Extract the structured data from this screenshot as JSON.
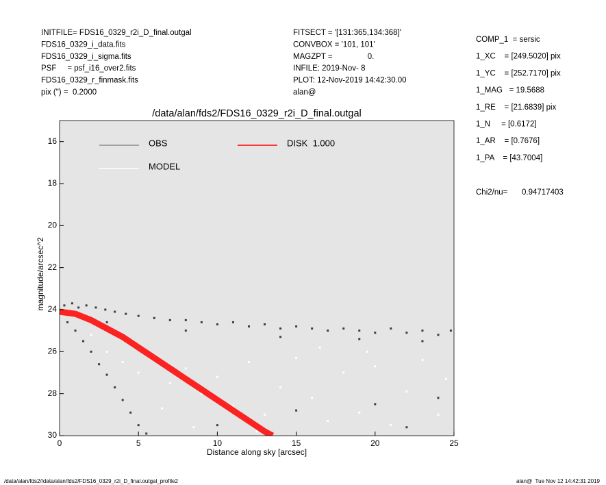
{
  "header": {
    "left": [
      "INITFILE= FDS16_0329_r2i_D_final.outgal",
      "FDS16_0329_i_data.fits",
      "FDS16_0329_i_sigma.fits",
      "PSF     = psf_i16_over2.fits",
      "FDS16_0329_r_finmask.fits",
      "pix (\") =  0.2000"
    ],
    "middle": [
      "FITSECT = '[131:365,134:368]'",
      "CONVBOX = '101, 101'",
      "MAGZPT =                0.",
      "INFILE: 2019-Nov- 8",
      "PLOT: 12-Nov-2019 14:42:30.00",
      "alan@"
    ],
    "right": [
      "COMP_1  = sersic",
      "1_XC    = [249.5020] pix",
      "1_YC    = [252.7170] pix",
      "1_MAG   = 19.5688",
      "1_RE    = [21.6839] pix",
      "1_N     = [0.6172]",
      "1_AR    = [0.7676]",
      "1_PA    = [43.7004]"
    ],
    "chi_label": "Chi2/nu=",
    "chi_value": "0.94717403"
  },
  "chart_data": {
    "type": "scatter",
    "title": "/data/alan/fds2/FDS16_0329_r2i_D_final.outgal",
    "x_label": "Distance along sky [arcsec]",
    "y_label": "magnitude/arcsec^2",
    "xlim": [
      0,
      25
    ],
    "ylim": [
      30,
      15
    ],
    "xticks": [
      0,
      5,
      10,
      15,
      20,
      25
    ],
    "yticks": [
      16,
      18,
      20,
      22,
      24,
      26,
      28,
      30
    ],
    "background": "#e5e5e5",
    "series": [
      {
        "name": "OBS",
        "color": "#3c3c3c",
        "legend_color": "#8c8c8c",
        "marker": "point",
        "x": [
          0.3,
          0.8,
          1.2,
          1.7,
          2.3,
          2.9,
          3.5,
          4.2,
          5.0,
          6.0,
          7.0,
          8.0,
          9.0,
          10.0,
          11.0,
          12.0,
          13.0,
          14.0,
          15.0,
          16.0,
          17.0,
          18.0,
          19.0,
          20.0,
          21.0,
          22.0,
          23.0,
          24.0,
          24.8,
          3.0,
          8.0,
          14.0,
          19.0,
          23.0,
          0.5,
          1.0,
          1.5,
          2.0,
          2.5,
          3.0,
          3.5,
          4.0,
          4.5,
          5.0,
          5.5,
          10.0,
          15.0,
          20.0,
          24.0,
          22.0
        ],
        "values": [
          23.8,
          23.7,
          23.9,
          23.8,
          23.9,
          24.0,
          24.1,
          24.2,
          24.3,
          24.4,
          24.5,
          24.5,
          24.6,
          24.7,
          24.6,
          24.8,
          24.7,
          24.9,
          24.8,
          24.9,
          25.0,
          24.9,
          25.0,
          25.1,
          24.9,
          25.1,
          25.0,
          25.2,
          25.0,
          24.6,
          25.0,
          25.3,
          25.4,
          25.5,
          24.6,
          25.0,
          25.5,
          26.0,
          26.6,
          27.1,
          27.7,
          28.3,
          28.9,
          29.5,
          29.9,
          29.5,
          28.8,
          28.5,
          28.2,
          29.6
        ]
      },
      {
        "name": "MODEL",
        "color": "#ffffff",
        "legend_color": "#ffffff",
        "marker": "point",
        "x": [
          2,
          3,
          4,
          5,
          6,
          7,
          8,
          9,
          10,
          11,
          12,
          13,
          14,
          15,
          16,
          17,
          18,
          19,
          20,
          21,
          22,
          23,
          24,
          24.5,
          6.5,
          8.5,
          12.5,
          16.5,
          19.5
        ],
        "values": [
          25.2,
          26.0,
          26.5,
          27.0,
          26.2,
          27.5,
          26.8,
          28.0,
          27.2,
          28.6,
          26.5,
          29.0,
          27.7,
          26.3,
          28.2,
          29.3,
          27.0,
          28.9,
          26.7,
          29.5,
          27.9,
          26.4,
          29.0,
          27.3,
          28.7,
          29.6,
          29.8,
          25.8,
          26.0
        ]
      },
      {
        "name": "DISK  1.000",
        "color": "#ff0000",
        "legend_color": "#ff0000",
        "marker": "line",
        "x": [
          0,
          1,
          2,
          3,
          4,
          5,
          6,
          7,
          8,
          9,
          10,
          11,
          12,
          13,
          13.5
        ],
        "values": [
          24.1,
          24.2,
          24.5,
          24.9,
          25.3,
          25.8,
          26.3,
          26.8,
          27.3,
          27.8,
          28.3,
          28.8,
          29.3,
          29.8,
          30
        ]
      }
    ]
  },
  "footer": {
    "left": "/data/alan/fds2//data/alan/fds2/FDS16_0329_r2i_D_final.outgal_profile2",
    "right": "alan@  Tue Nov 12 14:42:31 2019"
  }
}
